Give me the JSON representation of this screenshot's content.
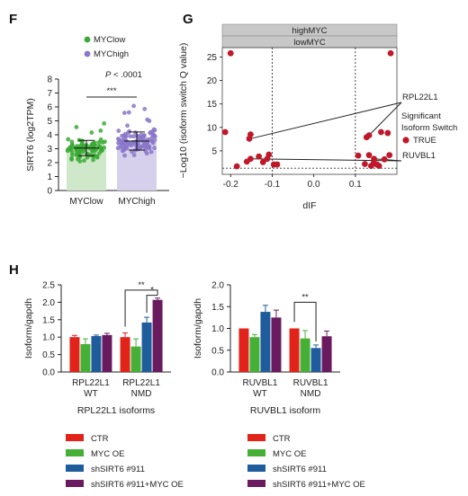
{
  "panels": {
    "F": "F",
    "G": "G",
    "H": "H"
  },
  "colors": {
    "mycLow": "#3aaa35",
    "mycHigh": "#8a77c9",
    "ctr": "#e2231a",
    "mycOE": "#45b035",
    "shSIRT6": "#1f5c9c",
    "shSIRT6_mycOE": "#6a1a5e",
    "volcano": "#c0182a",
    "strip": "#c8c8c8"
  },
  "chart_data": [
    {
      "id": "F",
      "type": "bar",
      "categories": [
        "MYClow",
        "MYChigh"
      ],
      "values": [
        3.05,
        3.55
      ],
      "errors": [
        0.55,
        0.65
      ],
      "ylabel": "SIRT6 (log2TPM)",
      "ylim": [
        0,
        8
      ],
      "yticks": [
        0,
        1,
        2,
        3,
        4,
        5,
        6,
        7,
        8
      ],
      "legend": [
        "MYClow",
        "MYChigh"
      ],
      "pvalue_italic": "P",
      "pvalue_rest": " < .0001",
      "significance": "***"
    },
    {
      "id": "G",
      "type": "scatter",
      "xlabel": "dIF",
      "ylabel": "−Log10 (isoform switch Q value)",
      "xlim": [
        -0.22,
        0.2
      ],
      "ylim": [
        0,
        27
      ],
      "xticks": [
        -0.2,
        -0.1,
        0.0,
        0.1
      ],
      "xtick_labels": [
        "-0.2",
        "-0.1",
        "0.0",
        "0.1"
      ],
      "yticks": [
        5,
        10,
        15,
        20,
        25
      ],
      "facet_labels": [
        "highMYC",
        "lowMYC"
      ],
      "vlines": [
        -0.1,
        0.1
      ],
      "hline": 1.3,
      "points": [
        {
          "x": -0.2,
          "y": 25.8
        },
        {
          "x": 0.185,
          "y": 25.8
        },
        {
          "x": -0.213,
          "y": 9.0
        },
        {
          "x": -0.152,
          "y": 8.5
        },
        {
          "x": -0.155,
          "y": 7.6
        },
        {
          "x": -0.108,
          "y": 4.2
        },
        {
          "x": -0.152,
          "y": 3.3
        },
        {
          "x": -0.132,
          "y": 3.8
        },
        {
          "x": -0.112,
          "y": 3.3
        },
        {
          "x": -0.122,
          "y": 2.6
        },
        {
          "x": -0.161,
          "y": 2.7
        },
        {
          "x": -0.096,
          "y": 2.1
        },
        {
          "x": -0.088,
          "y": 2.1
        },
        {
          "x": -0.185,
          "y": 1.7
        },
        {
          "x": 0.162,
          "y": 9.0
        },
        {
          "x": 0.178,
          "y": 8.8
        },
        {
          "x": 0.133,
          "y": 8.3
        },
        {
          "x": 0.127,
          "y": 7.9
        },
        {
          "x": 0.133,
          "y": 4.1
        },
        {
          "x": 0.107,
          "y": 4.0
        },
        {
          "x": 0.182,
          "y": 4.1
        },
        {
          "x": 0.17,
          "y": 3.2
        },
        {
          "x": 0.145,
          "y": 3.3
        },
        {
          "x": 0.144,
          "y": 2.4
        },
        {
          "x": 0.123,
          "y": 2.2
        },
        {
          "x": 0.152,
          "y": 2.1
        },
        {
          "x": 0.157,
          "y": 1.8
        },
        {
          "x": 0.138,
          "y": 1.8
        }
      ],
      "annotations": [
        "RPL22L1",
        "RUVBL1"
      ],
      "legend_title": "Significant\nIsoform Switch",
      "legend_entry": "TRUE"
    },
    {
      "id": "H1",
      "type": "bar",
      "ylabel": "Isoform/gapdh",
      "ylim": [
        0,
        2.5
      ],
      "yticks": [
        "0.0",
        "0.5",
        "1.0",
        "1.5",
        "2.0",
        "2.5"
      ],
      "groups": [
        {
          "label1": "RPL22L1",
          "label2": "WT"
        },
        {
          "label1": "RPL22L1",
          "label2": "NMD"
        }
      ],
      "series": [
        {
          "name": "CTR",
          "values": [
            1.0,
            1.0
          ],
          "errors": [
            0.05,
            0.12
          ]
        },
        {
          "name": "MYC OE",
          "values": [
            0.8,
            0.73
          ],
          "errors": [
            0.15,
            0.22
          ]
        },
        {
          "name": "shSIRT6 #911",
          "values": [
            1.03,
            1.42
          ],
          "errors": [
            0.03,
            0.15
          ]
        },
        {
          "name": "shSIRT6 #911+MYC OE",
          "values": [
            1.06,
            2.07
          ],
          "errors": [
            0.05,
            0.05
          ]
        }
      ],
      "series_order_colors": [
        "ctr",
        "shSIRT6",
        "mycOE",
        "shSIRT6_mycOE"
      ],
      "xtitle": "RPL22L1 isoforms",
      "sig": [
        "**",
        "*"
      ]
    },
    {
      "id": "H2",
      "type": "bar",
      "ylabel": "Isoform/gapdh",
      "ylim": [
        0,
        2.0
      ],
      "yticks": [
        "0.0",
        "0.5",
        "1.0",
        "1.5",
        "2.0"
      ],
      "groups": [
        {
          "label1": "RUVBL1",
          "label2": "WT"
        },
        {
          "label1": "RUVBL1",
          "label2": "NMD"
        }
      ],
      "series": [
        {
          "name": "CTR",
          "values": [
            1.0,
            1.0
          ],
          "errors": [
            0.0,
            0.0
          ]
        },
        {
          "name": "MYC OE",
          "values": [
            0.8,
            0.77
          ],
          "errors": [
            0.06,
            0.18
          ]
        },
        {
          "name": "shSIRT6 #911",
          "values": [
            1.38,
            0.55
          ],
          "errors": [
            0.15,
            0.07
          ]
        },
        {
          "name": "shSIRT6 #911+MYC OE",
          "values": [
            1.25,
            0.82
          ],
          "errors": [
            0.17,
            0.12
          ]
        }
      ],
      "series_order_colors": [
        "ctr",
        "shSIRT6",
        "mycOE",
        "shSIRT6_mycOE"
      ],
      "xtitle": "RUVBL1 isoform",
      "sig": [
        "**"
      ]
    }
  ],
  "legendH": [
    {
      "label": "CTR",
      "color": "ctr"
    },
    {
      "label": "MYC OE",
      "color": "mycOE"
    },
    {
      "label": "shSIRT6 #911",
      "color": "shSIRT6"
    },
    {
      "label": "shSIRT6 #911+MYC OE",
      "color": "shSIRT6_mycOE"
    }
  ]
}
